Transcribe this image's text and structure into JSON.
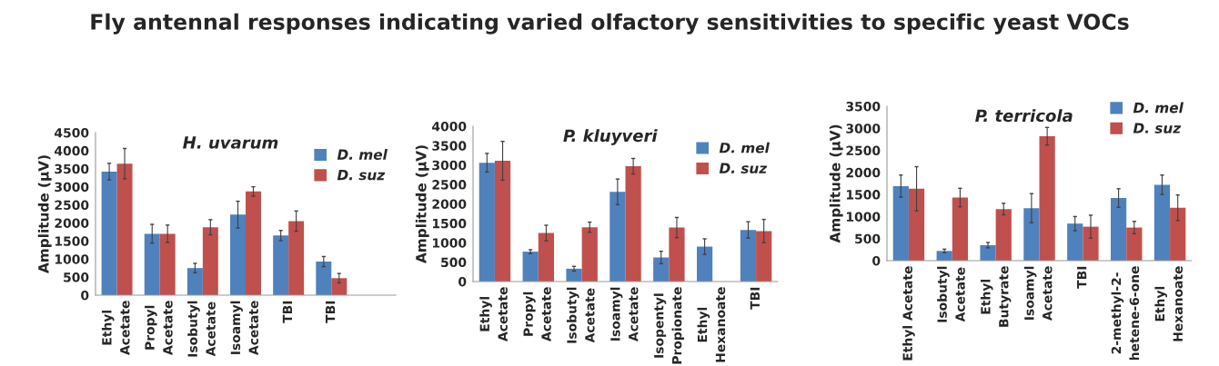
{
  "chart_data": [
    {
      "type": "bar",
      "title": "H. uvarum",
      "ylabel": "Amplitude (µV)",
      "annotations": [
        "Fly antennal responses indicating varied olfactory sensitivities to specific yeast VOCs"
      ],
      "categories": [
        "Ethyl\nAcetate",
        "Propyl\nAcetate",
        "Isobutyl\nAcetate",
        "Isoamyl\nAcetate",
        "TBI",
        "TBI",
        null
      ],
      "series": [
        {
          "name": "D. mel",
          "color": "#4f81bd",
          "values": [
            3420,
            1700,
            750,
            2230,
            1650,
            930,
            null
          ],
          "errors": [
            230,
            260,
            130,
            370,
            140,
            140,
            null
          ]
        },
        {
          "name": "D. suz",
          "color": "#c0504d",
          "values": [
            3640,
            1700,
            1880,
            2870,
            2050,
            470,
            null
          ],
          "errors": [
            420,
            240,
            210,
            130,
            280,
            130,
            null
          ]
        }
      ],
      "ylim": [
        0,
        4500
      ],
      "yticks": [
        0,
        500,
        1000,
        1500,
        2000,
        2500,
        3000,
        3500,
        4000,
        4500
      ],
      "legend": "top right"
    },
    {
      "type": "bar",
      "title": "P. kluyveri",
      "ylabel": "Amplitude (µV)",
      "categories": [
        "Ethyl\nAcetate",
        "Propyl\nAcetate",
        "Isobutyl\nAcetate",
        "Isoamyl\nAcetate",
        "Isopentyl\nPropionate",
        "Ethyl\nHexanoate",
        "TBI"
      ],
      "series": [
        {
          "name": "D. mel",
          "color": "#4f81bd",
          "values": [
            3060,
            770,
            330,
            2310,
            620,
            900,
            1330
          ],
          "errors": [
            240,
            50,
            60,
            330,
            160,
            200,
            210
          ]
        },
        {
          "name": "D. suz",
          "color": "#c0504d",
          "values": [
            3110,
            1250,
            1400,
            2970,
            1390,
            null,
            1300
          ],
          "errors": [
            500,
            200,
            130,
            200,
            260,
            null,
            300
          ]
        }
      ],
      "ylim": [
        0,
        4000
      ],
      "yticks": [
        0,
        500,
        1000,
        1500,
        2000,
        2500,
        3000,
        3500,
        4000
      ],
      "legend": "top right"
    },
    {
      "type": "bar",
      "title": "P. terricola",
      "ylabel": "Amplitude (µV)",
      "categories": [
        "Ethyl Acetate",
        "Isobutyl\nAcetate",
        "Ethyl\nButyrate",
        "Isoamyl\nAcetate",
        "TBI",
        "2-methyl-2-\nhetene-6-one",
        "Ethyl\nHexanoate"
      ],
      "series": [
        {
          "name": "D. mel",
          "color": "#4f81bd",
          "values": [
            1690,
            220,
            350,
            1190,
            840,
            1420,
            1720
          ],
          "errors": [
            250,
            40,
            60,
            330,
            160,
            210,
            220
          ]
        },
        {
          "name": "D. suz",
          "color": "#c0504d",
          "values": [
            1630,
            1430,
            1170,
            2820,
            770,
            750,
            1200
          ],
          "errors": [
            500,
            210,
            130,
            200,
            260,
            140,
            290
          ]
        }
      ],
      "ylim": [
        0,
        3500
      ],
      "yticks": [
        0,
        500,
        1000,
        1500,
        2000,
        2500,
        3000,
        3500
      ],
      "legend": "top right"
    }
  ]
}
